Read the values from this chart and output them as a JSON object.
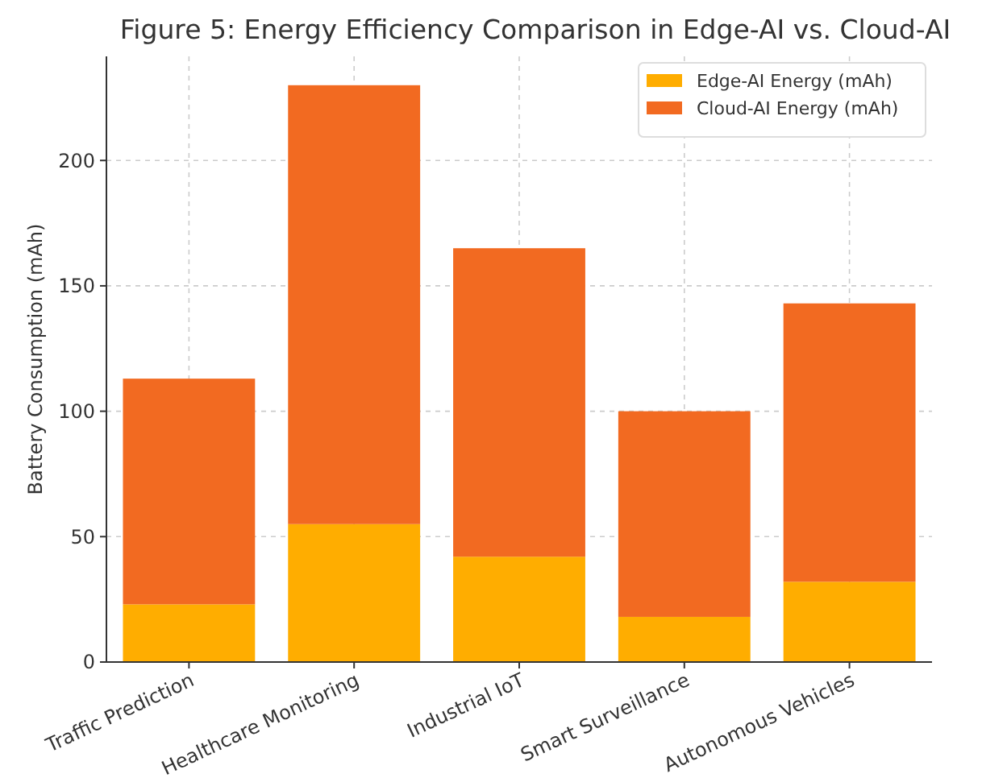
{
  "chart_data": {
    "type": "bar",
    "title": "Figure 5: Energy Efficiency Comparison in Edge-AI vs. Cloud-AI",
    "ylabel": "Battery Consumption (mAh)",
    "categories": [
      "Traffic Prediction",
      "Healthcare Monitoring",
      "Industrial IoT",
      "Smart Surveillance",
      "Autonomous Vehicles"
    ],
    "series": [
      {
        "name": "Edge-AI Energy (mAh)",
        "color": "#ffad00",
        "values": [
          23,
          55,
          42,
          18,
          32
        ]
      },
      {
        "name": "Cloud-AI Energy (mAh)",
        "color": "#f26a21",
        "values": [
          90,
          175,
          123,
          82,
          111
        ]
      }
    ],
    "stacked": true,
    "ylim": [
      0,
      241.5
    ],
    "yticks": [
      0,
      50,
      100,
      150,
      200
    ],
    "grid": true,
    "legend": "top right"
  }
}
